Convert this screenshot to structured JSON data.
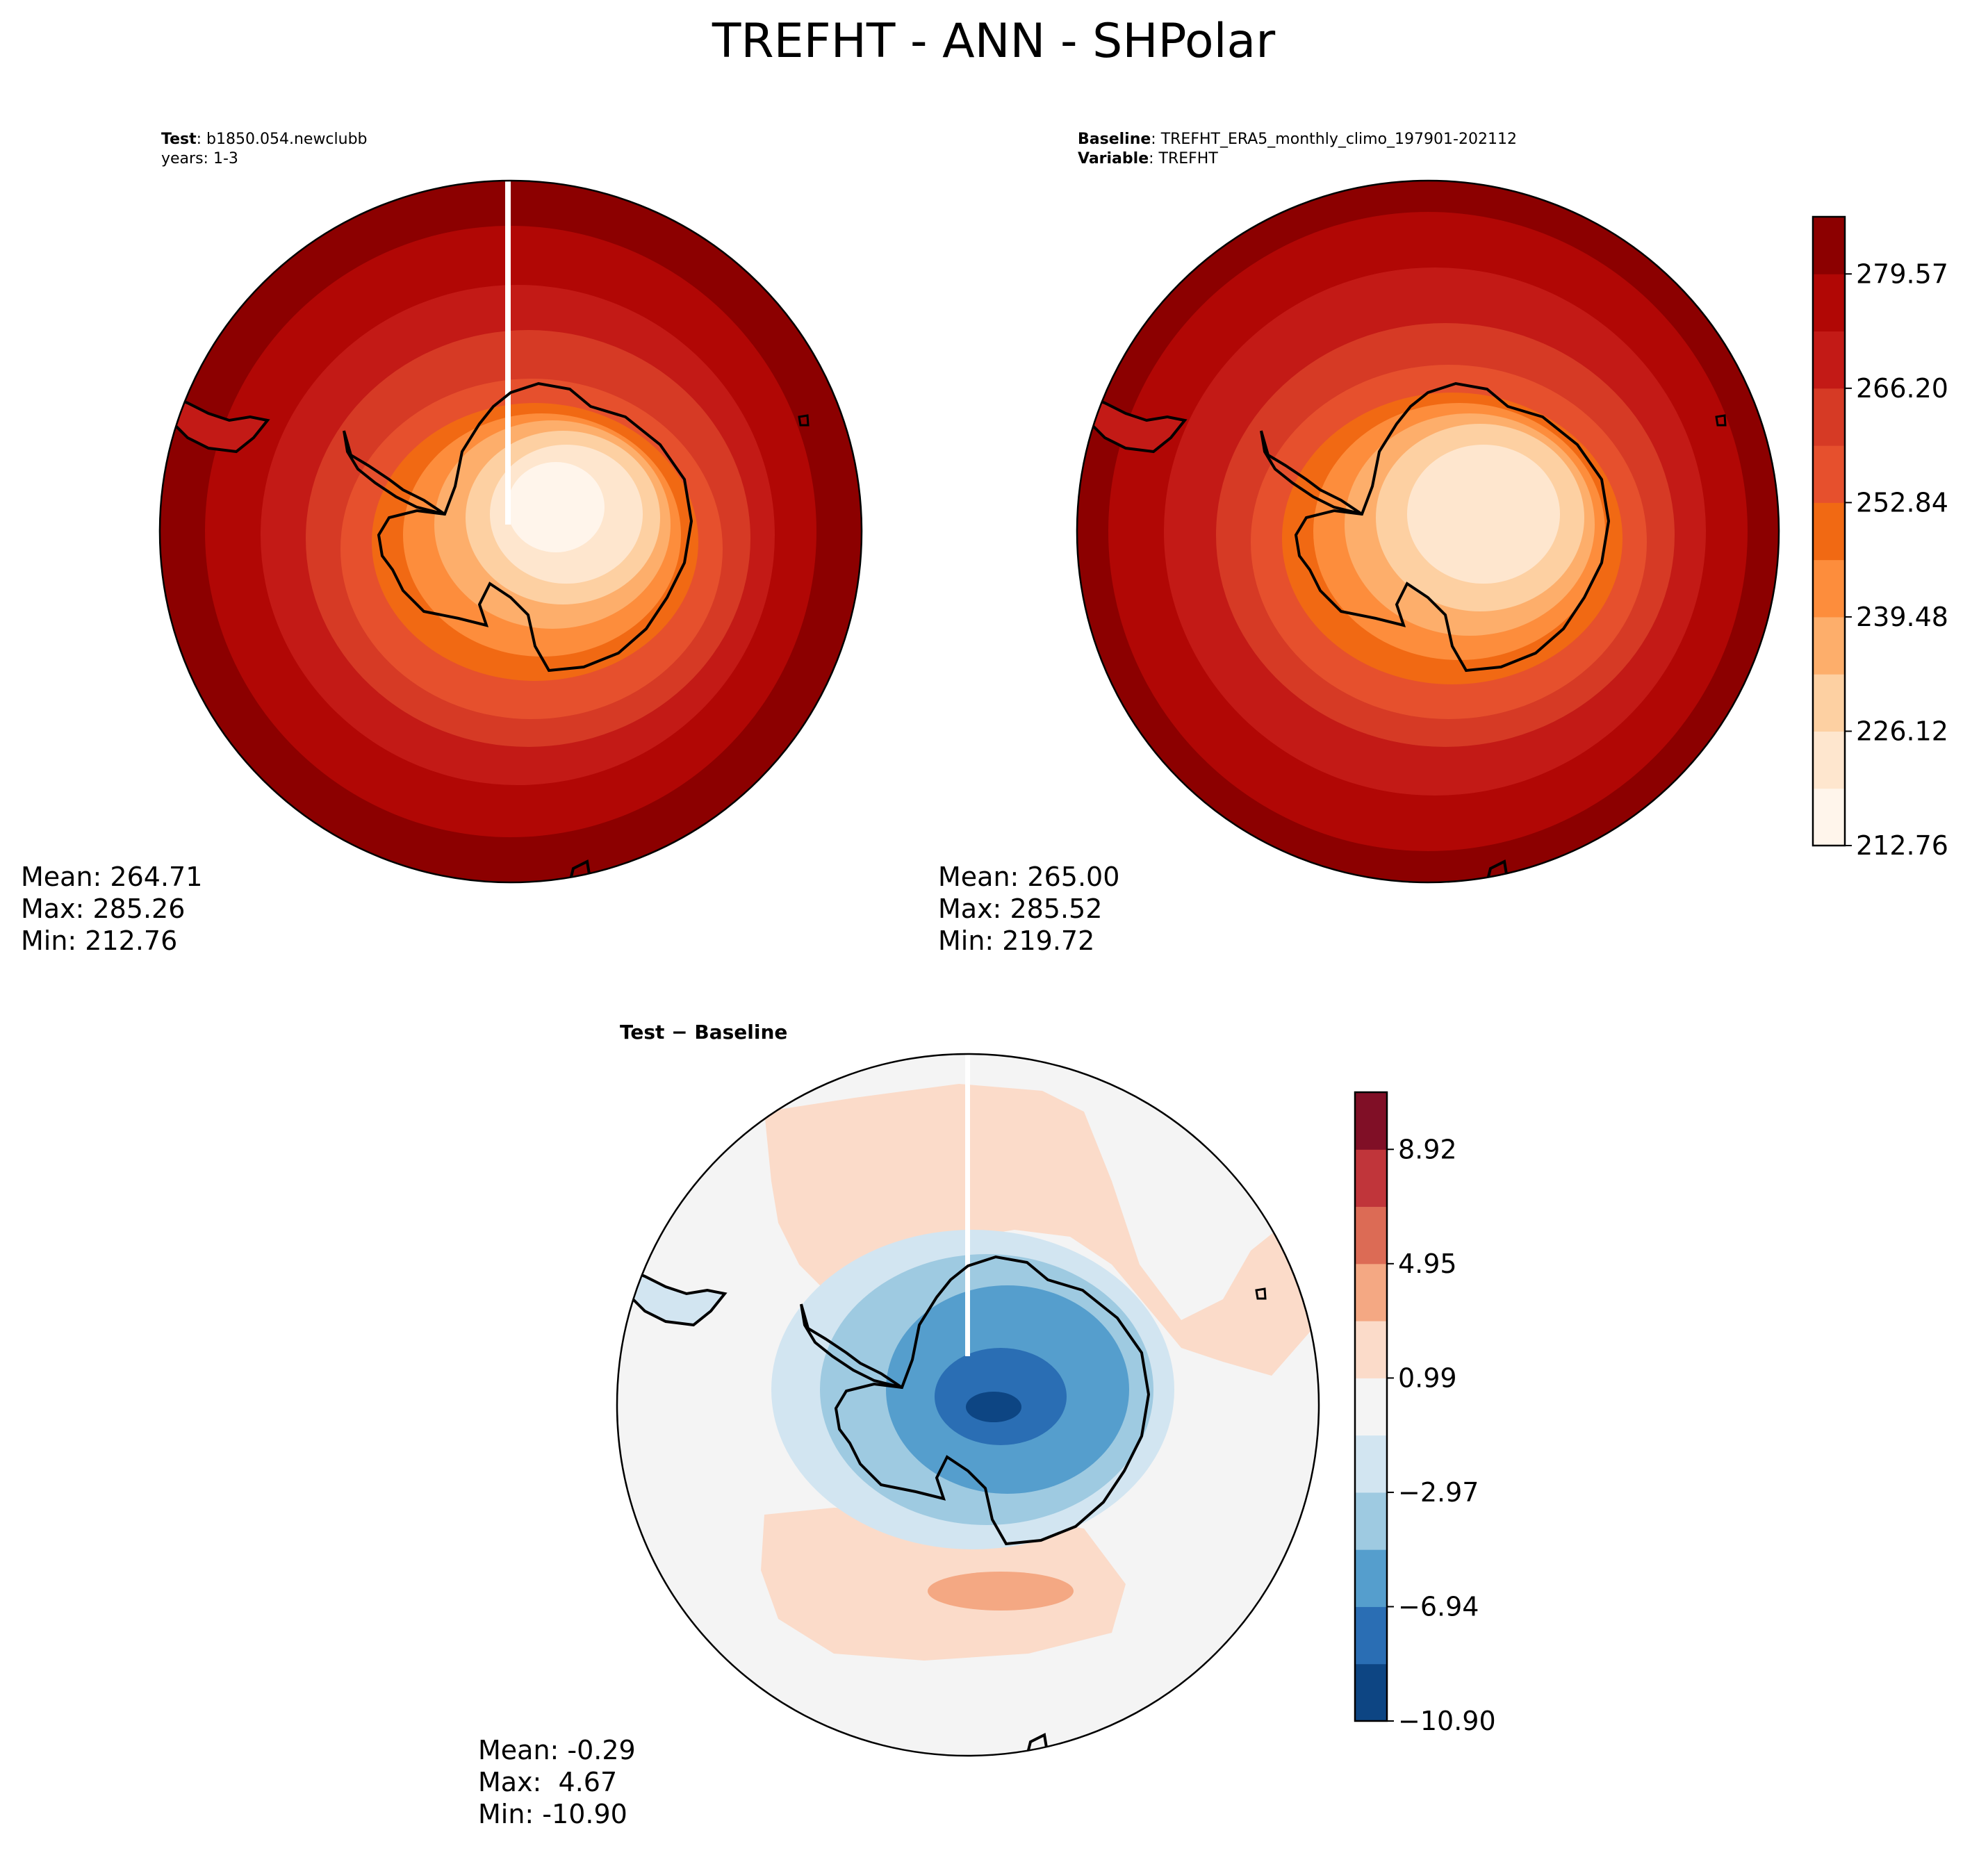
{
  "figure": {
    "title": "TREFHT - ANN - SHPolar"
  },
  "test_panel": {
    "label_bold": "Test",
    "label_value": ": b1850.054.newclubb",
    "line2": "years: 1-3",
    "stats": {
      "mean": "Mean: 264.71",
      "max": "Max: 285.26",
      "min": "Min: 212.76"
    }
  },
  "baseline_panel": {
    "label_bold": "Baseline",
    "label_value": ": TREFHT_ERA5_monthly_climo_197901-202112",
    "label2_bold": "Variable",
    "label2_value": ": TREFHT",
    "stats": {
      "mean": "Mean: 265.00",
      "max": "Max: 285.52",
      "min": "Min: 219.72"
    }
  },
  "diff_panel": {
    "title": "Test − Baseline",
    "stats": {
      "mean": "Mean: -0.29",
      "max": "Max:  4.67",
      "min": "Min: -10.90"
    }
  },
  "colorbars": {
    "temp": {
      "ticks": [
        "212.76",
        "226.12",
        "239.48",
        "252.84",
        "266.20",
        "279.57"
      ],
      "colors": [
        "#fff5eb",
        "#fee6ce",
        "#fdd0a2",
        "#fdae6b",
        "#fd8d3c",
        "#f16913",
        "#e6502d",
        "#d63a25",
        "#c31a16",
        "#b10705",
        "#8c0000"
      ]
    },
    "diff": {
      "ticks": [
        "−10.90",
        "−6.94",
        "−2.97",
        "0.99",
        "4.95",
        "8.92"
      ],
      "colors": [
        "#0d4583",
        "#2a6eb4",
        "#559ecd",
        "#9ecae1",
        "#d2e5f1",
        "#f4f4f4",
        "#fbdbc9",
        "#f4a883",
        "#dc6b55",
        "#c0353a",
        "#800f26"
      ]
    }
  },
  "colors": {
    "land_outline": "#000000",
    "ocean_outer": "#8b0000",
    "diff_background": "#f4f4f4"
  }
}
